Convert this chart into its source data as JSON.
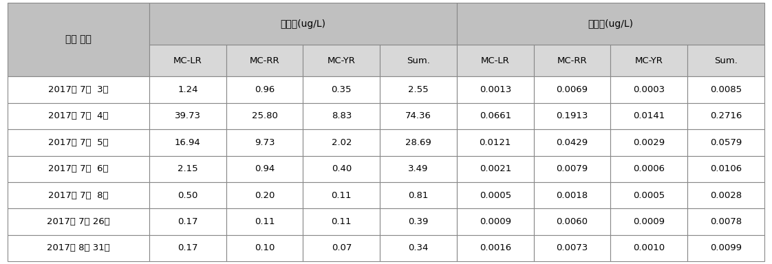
{
  "header_row1": [
    "채집 일시",
    "용존태(ug/L)",
    "입자태(ug/L)"
  ],
  "header_row2": [
    "",
    "MC-LR",
    "MC-RR",
    "MC-YR",
    "Sum.",
    "MC-LR",
    "MC-RR",
    "MC-YR",
    "Sum."
  ],
  "rows": [
    [
      "2017년 7월  3일",
      "1.24",
      "0.96",
      "0.35",
      "2.55",
      "0.0013",
      "0.0069",
      "0.0003",
      "0.0085"
    ],
    [
      "2017년 7월  4일",
      "39.73",
      "25.80",
      "8.83",
      "74.36",
      "0.0661",
      "0.1913",
      "0.0141",
      "0.2716"
    ],
    [
      "2017년 7월  5일",
      "16.94",
      "9.73",
      "2.02",
      "28.69",
      "0.0121",
      "0.0429",
      "0.0029",
      "0.0579"
    ],
    [
      "2017년 7월  6일",
      "2.15",
      "0.94",
      "0.40",
      "3.49",
      "0.0021",
      "0.0079",
      "0.0006",
      "0.0106"
    ],
    [
      "2017년 7월  8일",
      "0.50",
      "0.20",
      "0.11",
      "0.81",
      "0.0005",
      "0.0018",
      "0.0005",
      "0.0028"
    ],
    [
      "2017년 7월 26일",
      "0.17",
      "0.11",
      "0.11",
      "0.39",
      "0.0009",
      "0.0060",
      "0.0009",
      "0.0078"
    ],
    [
      "2017년 8월 31일",
      "0.17",
      "0.10",
      "0.07",
      "0.34",
      "0.0016",
      "0.0073",
      "0.0010",
      "0.0099"
    ]
  ],
  "header_bg": "#c0c0c0",
  "subheader_bg": "#d8d8d8",
  "row_bg_odd": "#ffffff",
  "row_bg_even": "#ffffff",
  "border_color": "#888888",
  "text_color": "#000000",
  "header_text_color": "#000000"
}
